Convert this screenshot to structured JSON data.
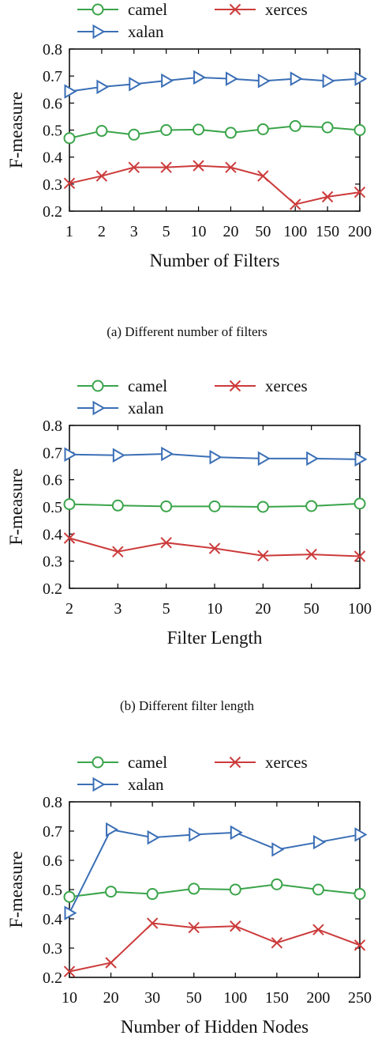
{
  "colors": {
    "camel": "#3aa44a",
    "xerces": "#cc3b3b",
    "xalan": "#3b6fb6"
  },
  "chart_data": [
    {
      "type": "line",
      "caption": "(a) Different number of filters",
      "xlabel": "Number of Filters",
      "ylabel": "F-measure",
      "categories": [
        "1",
        "2",
        "3",
        "5",
        "10",
        "20",
        "50",
        "100",
        "150",
        "200"
      ],
      "ylim": [
        0.2,
        0.8
      ],
      "yticks": [
        "0.2",
        "0.3",
        "0.4",
        "0.5",
        "0.6",
        "0.7",
        "0.8"
      ],
      "grid": false,
      "legend": "top",
      "series": [
        {
          "name": "camel",
          "marker": "circle",
          "values": [
            0.47,
            0.497,
            0.483,
            0.5,
            0.502,
            0.49,
            0.503,
            0.515,
            0.51,
            0.5
          ]
        },
        {
          "name": "xerces",
          "marker": "x",
          "values": [
            0.303,
            0.33,
            0.362,
            0.362,
            0.368,
            0.362,
            0.33,
            0.225,
            0.253,
            0.27
          ]
        },
        {
          "name": "xalan",
          "marker": "triangle-right",
          "values": [
            0.643,
            0.66,
            0.67,
            0.683,
            0.695,
            0.69,
            0.682,
            0.69,
            0.682,
            0.69
          ]
        }
      ]
    },
    {
      "type": "line",
      "caption": "(b) Different filter length",
      "xlabel": "Filter Length",
      "ylabel": "F-measure",
      "categories": [
        "2",
        "3",
        "5",
        "10",
        "20",
        "50",
        "100"
      ],
      "ylim": [
        0.2,
        0.8
      ],
      "yticks": [
        "0.2",
        "0.3",
        "0.4",
        "0.5",
        "0.6",
        "0.7",
        "0.8"
      ],
      "grid": false,
      "legend": "top",
      "series": [
        {
          "name": "camel",
          "marker": "circle",
          "values": [
            0.51,
            0.505,
            0.502,
            0.502,
            0.5,
            0.503,
            0.512
          ]
        },
        {
          "name": "xerces",
          "marker": "x",
          "values": [
            0.385,
            0.335,
            0.368,
            0.347,
            0.32,
            0.325,
            0.318
          ]
        },
        {
          "name": "xalan",
          "marker": "triangle-right",
          "values": [
            0.693,
            0.69,
            0.695,
            0.683,
            0.678,
            0.678,
            0.675
          ]
        }
      ]
    },
    {
      "type": "line",
      "caption": "",
      "xlabel": "Number of Hidden Nodes",
      "ylabel": "F-measure",
      "categories": [
        "10",
        "20",
        "30",
        "50",
        "100",
        "150",
        "200",
        "250"
      ],
      "ylim": [
        0.2,
        0.8
      ],
      "yticks": [
        "0.2",
        "0.3",
        "0.4",
        "0.5",
        "0.6",
        "0.7",
        "0.8"
      ],
      "grid": false,
      "legend": "top",
      "series": [
        {
          "name": "camel",
          "marker": "circle",
          "values": [
            0.475,
            0.493,
            0.485,
            0.503,
            0.5,
            0.518,
            0.5,
            0.485
          ]
        },
        {
          "name": "xerces",
          "marker": "x",
          "values": [
            0.22,
            0.25,
            0.385,
            0.37,
            0.375,
            0.318,
            0.363,
            0.31
          ]
        },
        {
          "name": "xalan",
          "marker": "triangle-right",
          "values": [
            0.42,
            0.705,
            0.678,
            0.688,
            0.695,
            0.637,
            0.662,
            0.688
          ]
        }
      ]
    }
  ]
}
